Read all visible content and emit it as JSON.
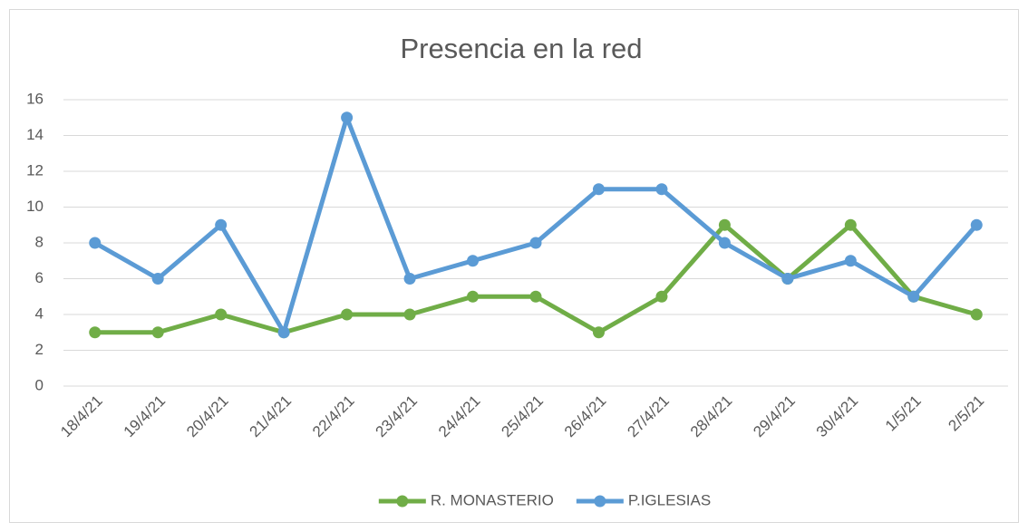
{
  "chart_data": {
    "type": "line",
    "title": "Presencia en la red",
    "categories": [
      "18/4/21",
      "19/4/21",
      "20/4/21",
      "21/4/21",
      "22/4/21",
      "23/4/21",
      "24/4/21",
      "25/4/21",
      "26/4/21",
      "27/4/21",
      "28/4/21",
      "29/4/21",
      "30/4/21",
      "1/5/21",
      "2/5/21"
    ],
    "series": [
      {
        "name": "R. MONASTERIO",
        "color": "#70ad47",
        "values": [
          3,
          3,
          4,
          3,
          4,
          4,
          5,
          5,
          3,
          5,
          9,
          6,
          9,
          5,
          4
        ]
      },
      {
        "name": "P.IGLESIAS",
        "color": "#5b9bd5",
        "values": [
          8,
          6,
          9,
          3,
          15,
          6,
          7,
          8,
          11,
          11,
          8,
          6,
          7,
          5,
          9
        ]
      }
    ],
    "ylim": [
      0,
      16
    ],
    "yticks": [
      0,
      2,
      4,
      6,
      8,
      10,
      12,
      14,
      16
    ],
    "grid": true,
    "legend": "bottom"
  }
}
